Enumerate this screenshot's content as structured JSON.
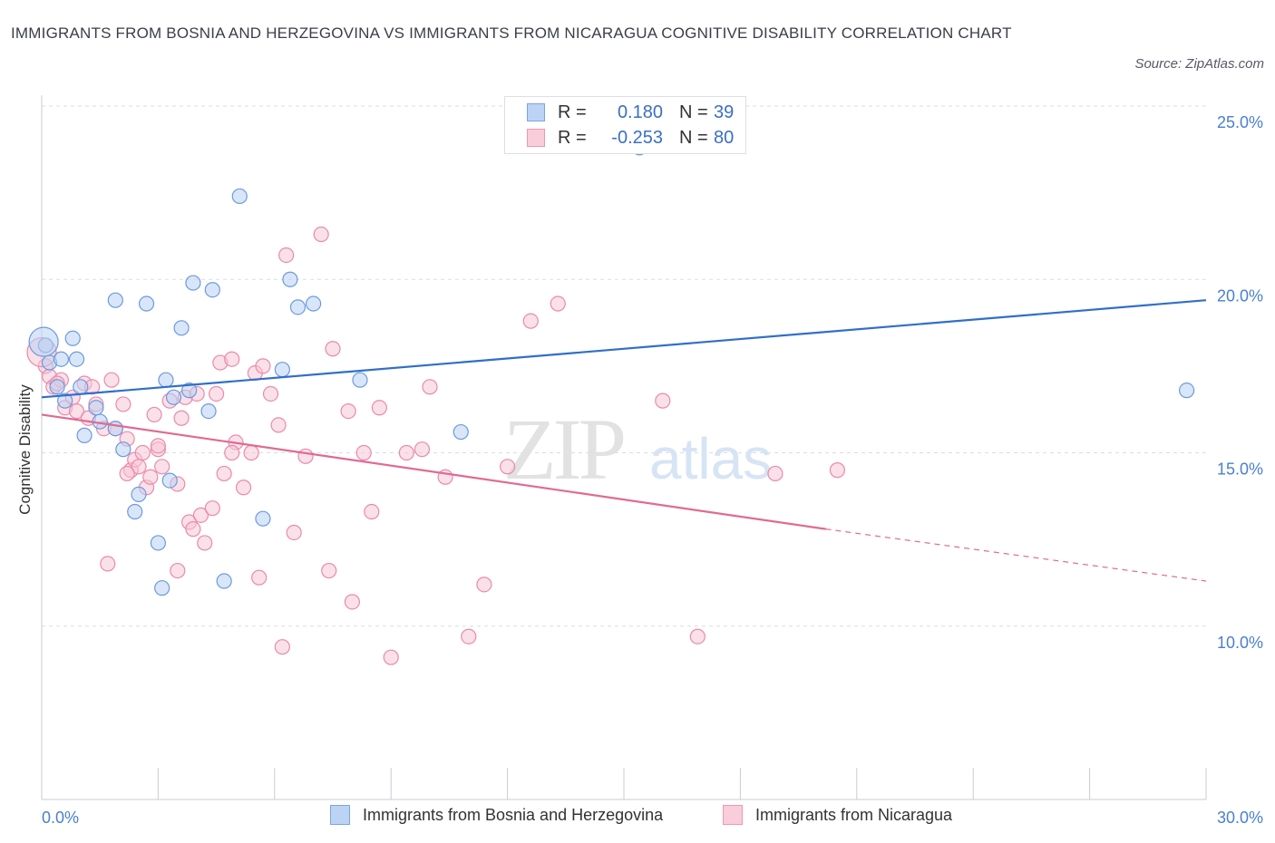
{
  "title": "IMMIGRANTS FROM BOSNIA AND HERZEGOVINA VS IMMIGRANTS FROM NICARAGUA COGNITIVE DISABILITY CORRELATION CHART",
  "source": "Source: ZipAtlas.com",
  "watermark": {
    "zip": "ZIP",
    "atlas": "atlas"
  },
  "colors": {
    "blue": "#6b9bde",
    "blue_fill": "#b9d1f4",
    "blue_line": "#2f6fca",
    "pink": "#ea8aab",
    "pink_fill": "#f6c6d6",
    "pink_line": "#e06a93",
    "axis_text": "#4a80d0"
  },
  "legend": {
    "rows": [
      {
        "r_label": "R =",
        "r_value": "0.180",
        "n_label": "N =",
        "n_value": "39"
      },
      {
        "r_label": "R =",
        "r_value": "-0.253",
        "n_label": "N =",
        "n_value": "80"
      }
    ]
  },
  "bottom_legend": [
    "Immigrants from Bosnia and Herzegovina",
    "Immigrants from Nicaragua"
  ],
  "chart_data": {
    "type": "scatter",
    "ylabel": "Cognitive Disability",
    "x_ticks": [
      "0.0%",
      "30.0%"
    ],
    "y_ticks": [
      "10.0%",
      "15.0%",
      "20.0%",
      "25.0%"
    ],
    "xlim": [
      0,
      30
    ],
    "ylim": [
      5,
      25.5
    ],
    "series": [
      {
        "name": "Immigrants from Bosnia and Herzegovina",
        "trend": {
          "x": [
            0,
            30
          ],
          "y": [
            16.6,
            19.4
          ]
        },
        "points": [
          [
            0.1,
            18.1
          ],
          [
            0.2,
            17.6
          ],
          [
            0.4,
            16.9
          ],
          [
            0.5,
            17.7
          ],
          [
            0.6,
            16.5
          ],
          [
            0.8,
            18.3
          ],
          [
            0.9,
            17.7
          ],
          [
            1.0,
            16.9
          ],
          [
            1.1,
            15.5
          ],
          [
            1.4,
            16.3
          ],
          [
            1.5,
            15.9
          ],
          [
            1.9,
            15.7
          ],
          [
            2.1,
            15.1
          ],
          [
            2.4,
            13.3
          ],
          [
            2.5,
            13.8
          ],
          [
            1.9,
            19.4
          ],
          [
            2.7,
            19.3
          ],
          [
            3.0,
            12.4
          ],
          [
            3.1,
            11.1
          ],
          [
            3.2,
            17.1
          ],
          [
            3.3,
            14.2
          ],
          [
            3.4,
            16.6
          ],
          [
            3.6,
            18.6
          ],
          [
            3.8,
            16.8
          ],
          [
            3.9,
            19.9
          ],
          [
            4.3,
            16.2
          ],
          [
            4.4,
            19.7
          ],
          [
            4.7,
            11.3
          ],
          [
            5.1,
            22.4
          ],
          [
            5.7,
            13.1
          ],
          [
            6.2,
            17.4
          ],
          [
            6.4,
            20.0
          ],
          [
            6.6,
            19.2
          ],
          [
            7.0,
            19.3
          ],
          [
            8.2,
            17.1
          ],
          [
            10.8,
            15.6
          ],
          [
            15.4,
            23.8
          ],
          [
            29.5,
            16.8
          ],
          [
            0.05,
            18.2
          ]
        ]
      },
      {
        "name": "Immigrants from Nicaragua",
        "trend": {
          "x": [
            0,
            20.2
          ],
          "y": [
            16.1,
            12.8
          ]
        },
        "trend_dashed": {
          "x": [
            20.2,
            30
          ],
          "y": [
            12.8,
            11.3
          ]
        },
        "points": [
          [
            0.1,
            17.5
          ],
          [
            0.2,
            17.2
          ],
          [
            0.3,
            16.9
          ],
          [
            0.5,
            17.1
          ],
          [
            0.6,
            16.3
          ],
          [
            0.8,
            16.6
          ],
          [
            0.9,
            16.2
          ],
          [
            1.1,
            17.0
          ],
          [
            1.3,
            16.9
          ],
          [
            1.4,
            16.4
          ],
          [
            1.6,
            15.7
          ],
          [
            1.8,
            17.1
          ],
          [
            1.9,
            15.7
          ],
          [
            2.1,
            16.4
          ],
          [
            2.2,
            15.4
          ],
          [
            2.3,
            14.5
          ],
          [
            2.4,
            14.8
          ],
          [
            2.5,
            14.6
          ],
          [
            2.6,
            15.0
          ],
          [
            2.7,
            14.0
          ],
          [
            2.8,
            14.3
          ],
          [
            2.9,
            16.1
          ],
          [
            3.0,
            15.1
          ],
          [
            3.1,
            14.6
          ],
          [
            3.3,
            16.5
          ],
          [
            3.5,
            14.1
          ],
          [
            3.6,
            16.0
          ],
          [
            3.7,
            16.6
          ],
          [
            3.8,
            13.0
          ],
          [
            3.9,
            12.8
          ],
          [
            4.0,
            16.7
          ],
          [
            4.1,
            13.2
          ],
          [
            4.2,
            12.4
          ],
          [
            4.4,
            13.4
          ],
          [
            4.5,
            16.7
          ],
          [
            4.6,
            17.6
          ],
          [
            4.7,
            14.4
          ],
          [
            4.9,
            17.7
          ],
          [
            5.0,
            15.3
          ],
          [
            5.2,
            14.0
          ],
          [
            5.4,
            15.0
          ],
          [
            5.5,
            17.3
          ],
          [
            5.7,
            17.5
          ],
          [
            5.9,
            16.7
          ],
          [
            6.1,
            15.8
          ],
          [
            6.3,
            20.7
          ],
          [
            6.5,
            12.7
          ],
          [
            6.8,
            14.9
          ],
          [
            7.2,
            21.3
          ],
          [
            7.4,
            11.6
          ],
          [
            7.5,
            18.0
          ],
          [
            7.9,
            16.2
          ],
          [
            8.0,
            10.7
          ],
          [
            8.3,
            15.0
          ],
          [
            8.5,
            13.3
          ],
          [
            8.7,
            16.3
          ],
          [
            9.0,
            9.1
          ],
          [
            9.4,
            15.0
          ],
          [
            9.8,
            15.1
          ],
          [
            10.0,
            16.9
          ],
          [
            10.4,
            14.3
          ],
          [
            11.0,
            9.7
          ],
          [
            11.4,
            11.2
          ],
          [
            12.0,
            14.6
          ],
          [
            12.6,
            18.8
          ],
          [
            13.3,
            19.3
          ],
          [
            16.0,
            16.5
          ],
          [
            16.9,
            9.7
          ],
          [
            18.9,
            14.4
          ],
          [
            20.5,
            14.5
          ],
          [
            1.7,
            11.8
          ],
          [
            3.5,
            11.6
          ],
          [
            6.2,
            9.4
          ],
          [
            5.6,
            11.4
          ],
          [
            2.2,
            14.4
          ],
          [
            0.4,
            17.0
          ],
          [
            1.2,
            16.0
          ],
          [
            4.9,
            15.0
          ],
          [
            3.0,
            15.2
          ],
          [
            0.0,
            17.9
          ]
        ]
      }
    ]
  }
}
